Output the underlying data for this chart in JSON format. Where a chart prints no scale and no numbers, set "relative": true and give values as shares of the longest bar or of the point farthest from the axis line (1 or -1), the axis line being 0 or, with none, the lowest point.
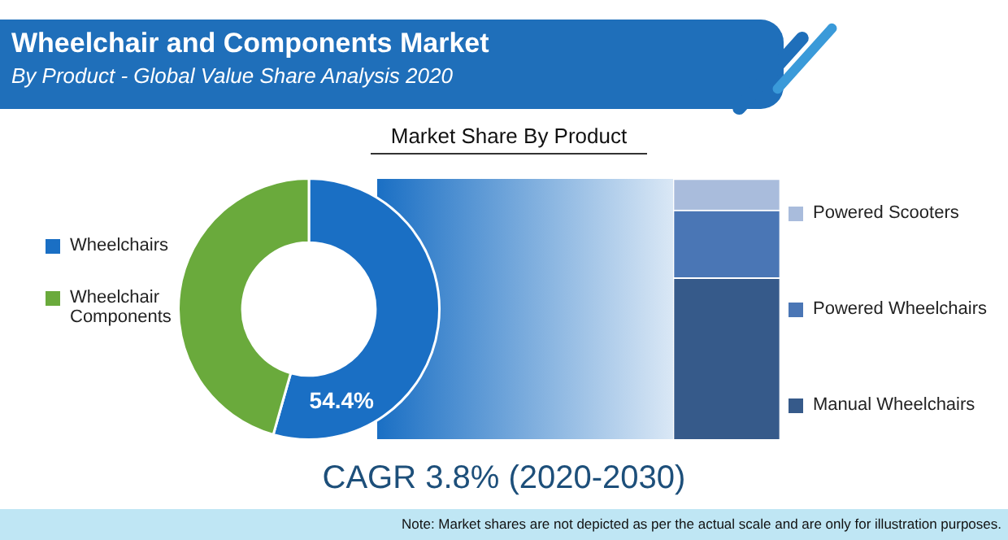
{
  "chart_data": [
    {
      "type": "donut",
      "title": "Wheelchair and Components Market",
      "subtitle": "By Product - Global Value Share Analysis 2020",
      "categories": [
        "Wheelchairs",
        "Wheelchair Components"
      ],
      "values": [
        54.4,
        45.6
      ],
      "colors": [
        "#1a6fc4",
        "#6aaa3c"
      ],
      "value_labels": [
        "54.4%",
        null
      ],
      "legend": "left",
      "annotations": [
        "Market Share By Product",
        "CAGR 3.8% (2020-2030)",
        "Note: Market shares are not depicted as per the actual scale and are only for illustration purposes."
      ]
    },
    {
      "type": "bar",
      "stacked": true,
      "relative": true,
      "legend": "right",
      "categories": [
        null
      ],
      "series": [
        {
          "name": "Manual Wheelchairs",
          "color": "#365a8a",
          "values": [
            0.62
          ]
        },
        {
          "name": "Powered Wheelchairs",
          "color": "#4a76b5",
          "values": [
            0.26
          ]
        },
        {
          "name": "Powered Scooters",
          "color": "#a9bcdc",
          "values": [
            0.12
          ]
        }
      ]
    }
  ]
}
